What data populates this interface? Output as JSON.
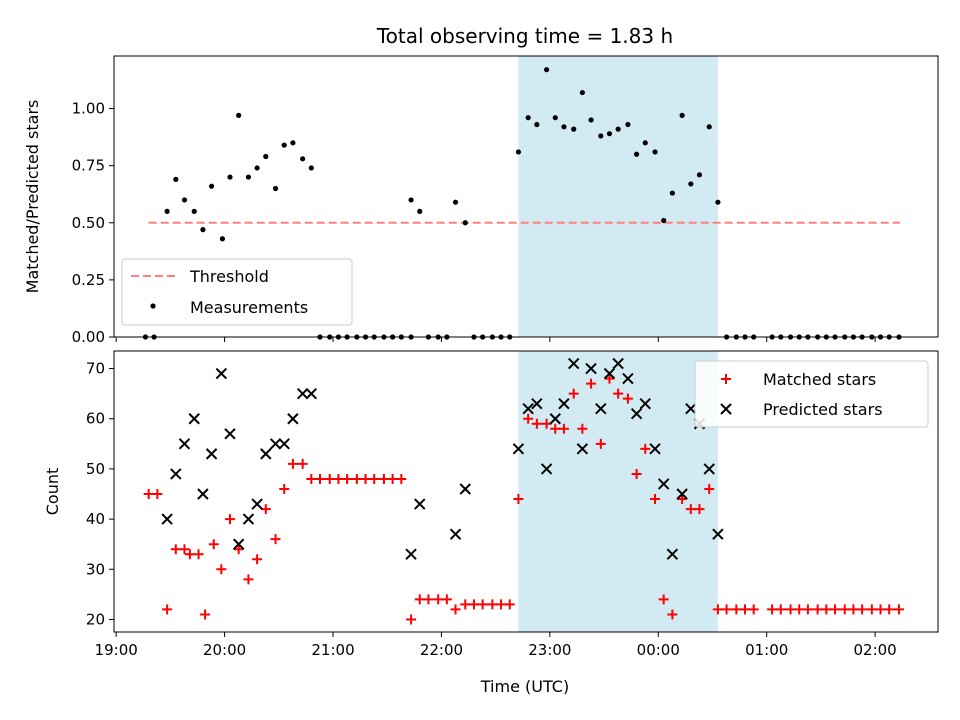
{
  "chart_data": {
    "type": "scatter",
    "title": "Total observing time = 1.83 h",
    "xlabel": "Time (UTC)",
    "x_unit": "hours after 19:00 UTC",
    "x_ticks": [
      {
        "value": 0,
        "label": "19:00"
      },
      {
        "value": 1,
        "label": "20:00"
      },
      {
        "value": 2,
        "label": "21:00"
      },
      {
        "value": 3,
        "label": "22:00"
      },
      {
        "value": 4,
        "label": "23:00"
      },
      {
        "value": 5,
        "label": "00:00"
      },
      {
        "value": 6,
        "label": "01:00"
      },
      {
        "value": 7,
        "label": "02:00"
      }
    ],
    "xlim": [
      -0.02,
      7.58
    ],
    "shaded_span": {
      "start": 3.71,
      "end": 5.55,
      "color": "#add8e6"
    },
    "panels": [
      {
        "id": "top",
        "ylabel": "Matched/Predicted stars",
        "ylim": [
          0,
          1.23
        ],
        "y_ticks": [
          {
            "value": 0.0,
            "label": "0.00"
          },
          {
            "value": 0.25,
            "label": "0.25"
          },
          {
            "value": 0.5,
            "label": "0.50"
          },
          {
            "value": 0.75,
            "label": "0.75"
          },
          {
            "value": 1.0,
            "label": "1.00"
          }
        ],
        "legend_position": "lower-left",
        "threshold": {
          "name": "Threshold",
          "value": 0.5,
          "x_range": [
            0.3,
            7.23
          ],
          "color": "#ff7f7f"
        },
        "measurements": {
          "name": "Measurements",
          "color": "#000000",
          "points": [
            [
              0.27,
              0.0
            ],
            [
              0.35,
              0.0
            ],
            [
              0.47,
              0.55
            ],
            [
              0.55,
              0.69
            ],
            [
              0.63,
              0.6
            ],
            [
              0.72,
              0.55
            ],
            [
              0.8,
              0.47
            ],
            [
              0.88,
              0.66
            ],
            [
              0.98,
              0.43
            ],
            [
              1.05,
              0.7
            ],
            [
              1.13,
              0.97
            ],
            [
              1.22,
              0.7
            ],
            [
              1.3,
              0.74
            ],
            [
              1.38,
              0.79
            ],
            [
              1.47,
              0.65
            ],
            [
              1.55,
              0.84
            ],
            [
              1.63,
              0.85
            ],
            [
              1.72,
              0.78
            ],
            [
              1.8,
              0.74
            ],
            [
              1.88,
              0.0
            ],
            [
              1.97,
              0.0
            ],
            [
              2.05,
              0.0
            ],
            [
              2.13,
              0.0
            ],
            [
              2.22,
              0.0
            ],
            [
              2.3,
              0.0
            ],
            [
              2.38,
              0.0
            ],
            [
              2.47,
              0.0
            ],
            [
              2.55,
              0.0
            ],
            [
              2.63,
              0.0
            ],
            [
              2.72,
              0.0
            ],
            [
              2.72,
              0.6
            ],
            [
              2.8,
              0.55
            ],
            [
              2.88,
              0.0
            ],
            [
              2.97,
              0.0
            ],
            [
              3.05,
              0.0
            ],
            [
              3.13,
              0.59
            ],
            [
              3.22,
              0.5
            ],
            [
              3.3,
              0.0
            ],
            [
              3.38,
              0.0
            ],
            [
              3.47,
              0.0
            ],
            [
              3.55,
              0.0
            ],
            [
              3.63,
              0.0
            ],
            [
              3.71,
              0.81
            ],
            [
              3.8,
              0.96
            ],
            [
              3.88,
              0.93
            ],
            [
              3.97,
              1.17
            ],
            [
              4.05,
              0.96
            ],
            [
              4.13,
              0.92
            ],
            [
              4.22,
              0.91
            ],
            [
              4.3,
              1.07
            ],
            [
              4.38,
              0.95
            ],
            [
              4.47,
              0.88
            ],
            [
              4.55,
              0.89
            ],
            [
              4.63,
              0.91
            ],
            [
              4.72,
              0.93
            ],
            [
              4.8,
              0.8
            ],
            [
              4.88,
              0.85
            ],
            [
              4.97,
              0.81
            ],
            [
              5.05,
              0.51
            ],
            [
              5.13,
              0.63
            ],
            [
              5.22,
              0.97
            ],
            [
              5.3,
              0.67
            ],
            [
              5.38,
              0.71
            ],
            [
              5.47,
              0.92
            ],
            [
              5.55,
              0.59
            ],
            [
              5.63,
              0.0
            ],
            [
              5.72,
              0.0
            ],
            [
              5.8,
              0.0
            ],
            [
              5.88,
              0.0
            ],
            [
              6.05,
              0.0
            ],
            [
              6.13,
              0.0
            ],
            [
              6.22,
              0.0
            ],
            [
              6.3,
              0.0
            ],
            [
              6.38,
              0.0
            ],
            [
              6.47,
              0.0
            ],
            [
              6.55,
              0.0
            ],
            [
              6.63,
              0.0
            ],
            [
              6.72,
              0.0
            ],
            [
              6.8,
              0.0
            ],
            [
              6.88,
              0.0
            ],
            [
              6.97,
              0.0
            ],
            [
              7.05,
              0.0
            ],
            [
              7.13,
              0.0
            ],
            [
              7.22,
              0.0
            ]
          ]
        }
      },
      {
        "id": "bottom",
        "ylabel": "Count",
        "ylim": [
          17.5,
          73.5
        ],
        "y_ticks": [
          {
            "value": 20,
            "label": "20"
          },
          {
            "value": 30,
            "label": "30"
          },
          {
            "value": 40,
            "label": "40"
          },
          {
            "value": 50,
            "label": "50"
          },
          {
            "value": 60,
            "label": "60"
          },
          {
            "value": 70,
            "label": "70"
          }
        ],
        "legend_position": "upper-right",
        "series": [
          {
            "name": "Matched stars",
            "marker": "plus",
            "color": "#ff0000",
            "points": [
              [
                0.3,
                45
              ],
              [
                0.38,
                45
              ],
              [
                0.47,
                22
              ],
              [
                0.55,
                34
              ],
              [
                0.63,
                34
              ],
              [
                0.68,
                33
              ],
              [
                0.76,
                33
              ],
              [
                0.82,
                21
              ],
              [
                0.9,
                35
              ],
              [
                0.97,
                30
              ],
              [
                1.05,
                40
              ],
              [
                1.13,
                34
              ],
              [
                1.22,
                28
              ],
              [
                1.3,
                32
              ],
              [
                1.38,
                42
              ],
              [
                1.47,
                36
              ],
              [
                1.55,
                46
              ],
              [
                1.63,
                51
              ],
              [
                1.72,
                51
              ],
              [
                1.8,
                48
              ],
              [
                1.88,
                48
              ],
              [
                1.97,
                48
              ],
              [
                2.05,
                48
              ],
              [
                2.13,
                48
              ],
              [
                2.22,
                48
              ],
              [
                2.3,
                48
              ],
              [
                2.38,
                48
              ],
              [
                2.47,
                48
              ],
              [
                2.55,
                48
              ],
              [
                2.63,
                48
              ],
              [
                2.72,
                20
              ],
              [
                2.8,
                24
              ],
              [
                2.88,
                24
              ],
              [
                2.97,
                24
              ],
              [
                3.05,
                24
              ],
              [
                3.13,
                22
              ],
              [
                3.22,
                23
              ],
              [
                3.3,
                23
              ],
              [
                3.38,
                23
              ],
              [
                3.47,
                23
              ],
              [
                3.55,
                23
              ],
              [
                3.63,
                23
              ],
              [
                3.71,
                44
              ],
              [
                3.8,
                60
              ],
              [
                3.88,
                59
              ],
              [
                3.97,
                59
              ],
              [
                4.05,
                58
              ],
              [
                4.13,
                58
              ],
              [
                4.22,
                65
              ],
              [
                4.3,
                58
              ],
              [
                4.38,
                67
              ],
              [
                4.47,
                55
              ],
              [
                4.55,
                68
              ],
              [
                4.63,
                65
              ],
              [
                4.72,
                64
              ],
              [
                4.8,
                49
              ],
              [
                4.88,
                54
              ],
              [
                4.97,
                44
              ],
              [
                5.05,
                24
              ],
              [
                5.13,
                21
              ],
              [
                5.22,
                44
              ],
              [
                5.3,
                42
              ],
              [
                5.38,
                42
              ],
              [
                5.47,
                46
              ],
              [
                5.55,
                22
              ],
              [
                5.63,
                22
              ],
              [
                5.72,
                22
              ],
              [
                5.8,
                22
              ],
              [
                5.88,
                22
              ],
              [
                6.05,
                22
              ],
              [
                6.13,
                22
              ],
              [
                6.22,
                22
              ],
              [
                6.3,
                22
              ],
              [
                6.38,
                22
              ],
              [
                6.47,
                22
              ],
              [
                6.55,
                22
              ],
              [
                6.63,
                22
              ],
              [
                6.72,
                22
              ],
              [
                6.8,
                22
              ],
              [
                6.88,
                22
              ],
              [
                6.97,
                22
              ],
              [
                7.05,
                22
              ],
              [
                7.13,
                22
              ],
              [
                7.22,
                22
              ]
            ]
          },
          {
            "name": "Predicted stars",
            "marker": "x",
            "color": "#000000",
            "points": [
              [
                0.47,
                40
              ],
              [
                0.55,
                49
              ],
              [
                0.63,
                55
              ],
              [
                0.72,
                60
              ],
              [
                0.8,
                45
              ],
              [
                0.88,
                53
              ],
              [
                0.97,
                69
              ],
              [
                1.05,
                57
              ],
              [
                1.13,
                35
              ],
              [
                1.22,
                40
              ],
              [
                1.3,
                43
              ],
              [
                1.38,
                53
              ],
              [
                1.47,
                55
              ],
              [
                1.55,
                55
              ],
              [
                1.63,
                60
              ],
              [
                1.72,
                65
              ],
              [
                1.8,
                65
              ],
              [
                2.72,
                33
              ],
              [
                2.8,
                43
              ],
              [
                3.13,
                37
              ],
              [
                3.22,
                46
              ],
              [
                3.71,
                54
              ],
              [
                3.8,
                62
              ],
              [
                3.88,
                63
              ],
              [
                3.97,
                50
              ],
              [
                4.05,
                60
              ],
              [
                4.13,
                63
              ],
              [
                4.22,
                71
              ],
              [
                4.3,
                54
              ],
              [
                4.38,
                70
              ],
              [
                4.47,
                62
              ],
              [
                4.55,
                69
              ],
              [
                4.63,
                71
              ],
              [
                4.72,
                68
              ],
              [
                4.8,
                61
              ],
              [
                4.88,
                63
              ],
              [
                4.97,
                54
              ],
              [
                5.05,
                47
              ],
              [
                5.13,
                33
              ],
              [
                5.22,
                45
              ],
              [
                5.3,
                62
              ],
              [
                5.38,
                59
              ],
              [
                5.47,
                50
              ],
              [
                5.55,
                37
              ]
            ]
          }
        ]
      }
    ]
  }
}
